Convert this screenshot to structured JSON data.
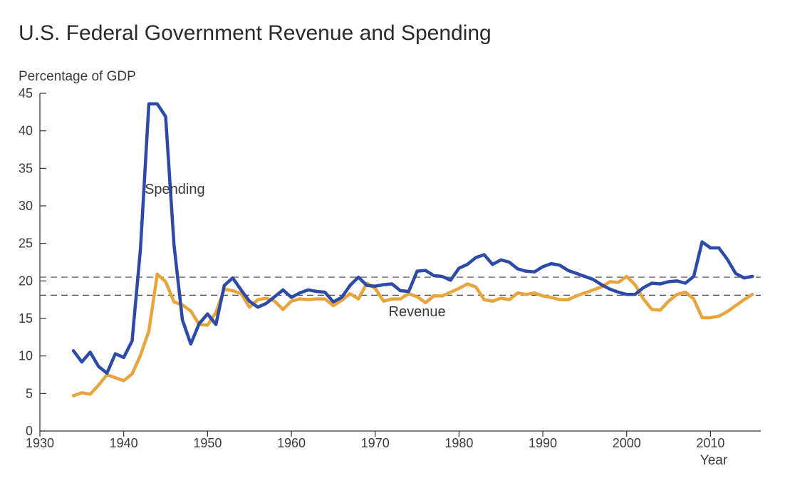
{
  "chart_data": {
    "type": "line",
    "title": "U.S. Federal Government Revenue and Spending",
    "ylabel": "Percentage of GDP",
    "xlabel": "Year",
    "xlim": [
      1930,
      2016
    ],
    "ylim": [
      0,
      45
    ],
    "x_ticks": [
      1930,
      1940,
      1950,
      1960,
      1970,
      1980,
      1990,
      2000,
      2010
    ],
    "y_ticks": [
      0,
      5,
      10,
      15,
      20,
      25,
      30,
      35,
      40,
      45
    ],
    "grid": false,
    "x": [
      1934,
      1935,
      1936,
      1937,
      1938,
      1939,
      1940,
      1941,
      1942,
      1943,
      1944,
      1945,
      1946,
      1947,
      1948,
      1949,
      1950,
      1951,
      1952,
      1953,
      1954,
      1955,
      1956,
      1957,
      1958,
      1959,
      1960,
      1961,
      1962,
      1963,
      1964,
      1965,
      1966,
      1967,
      1968,
      1969,
      1970,
      1971,
      1972,
      1973,
      1974,
      1975,
      1976,
      1977,
      1978,
      1979,
      1980,
      1981,
      1982,
      1983,
      1984,
      1985,
      1986,
      1987,
      1988,
      1989,
      1990,
      1991,
      1992,
      1993,
      1994,
      1995,
      1996,
      1997,
      1998,
      1999,
      2000,
      2001,
      2002,
      2003,
      2004,
      2005,
      2006,
      2007,
      2008,
      2009,
      2010,
      2011,
      2012,
      2013,
      2014,
      2015
    ],
    "series": [
      {
        "name": "Spending",
        "color": "#2c4aa8",
        "values": [
          10.7,
          9.2,
          10.5,
          8.6,
          7.7,
          10.3,
          9.8,
          12.0,
          24.3,
          43.6,
          43.6,
          41.9,
          24.8,
          14.8,
          11.6,
          14.3,
          15.6,
          14.2,
          19.4,
          20.4,
          18.8,
          17.3,
          16.5,
          17.0,
          17.9,
          18.8,
          17.8,
          18.4,
          18.8,
          18.6,
          18.5,
          17.2,
          17.8,
          19.4,
          20.5,
          19.4,
          19.3,
          19.5,
          19.6,
          18.7,
          18.6,
          21.3,
          21.4,
          20.7,
          20.6,
          20.1,
          21.7,
          22.2,
          23.1,
          23.5,
          22.2,
          22.8,
          22.5,
          21.6,
          21.3,
          21.2,
          21.9,
          22.3,
          22.1,
          21.4,
          21.0,
          20.6,
          20.2,
          19.5,
          18.9,
          18.5,
          18.2,
          18.2,
          19.1,
          19.7,
          19.6,
          19.9,
          20.0,
          19.7,
          20.6,
          25.2,
          24.4,
          24.4,
          22.9,
          21.0,
          20.4,
          20.6
        ],
        "label_position": {
          "x": 1942.5,
          "y": 31.6
        }
      },
      {
        "name": "Revenue",
        "color": "#e9a53c",
        "values": [
          4.7,
          5.1,
          4.9,
          6.1,
          7.5,
          7.1,
          6.7,
          7.6,
          10.1,
          13.3,
          20.9,
          19.9,
          17.2,
          16.8,
          16.0,
          14.2,
          14.1,
          15.8,
          18.9,
          18.7,
          18.3,
          16.5,
          17.5,
          17.7,
          17.3,
          16.2,
          17.3,
          17.6,
          17.5,
          17.6,
          17.6,
          16.7,
          17.4,
          18.3,
          17.6,
          19.7,
          19.0,
          17.3,
          17.6,
          17.6,
          18.3,
          17.9,
          17.1,
          18.0,
          18.0,
          18.5,
          19.0,
          19.6,
          19.2,
          17.5,
          17.3,
          17.7,
          17.5,
          18.4,
          18.2,
          18.4,
          18.0,
          17.8,
          17.5,
          17.5,
          18.0,
          18.4,
          18.8,
          19.2,
          19.9,
          19.8,
          20.6,
          19.5,
          17.6,
          16.2,
          16.1,
          17.3,
          18.2,
          18.5,
          17.6,
          15.1,
          15.1,
          15.3,
          15.9,
          16.7,
          17.5,
          18.2
        ],
        "label_position": {
          "x": 1971.6,
          "y": 15.3
        }
      }
    ],
    "reference_lines": [
      {
        "name": "average-spending",
        "y": 20.5,
        "style": "dashed"
      },
      {
        "name": "average-revenue",
        "y": 18.1,
        "style": "dashed"
      }
    ]
  }
}
